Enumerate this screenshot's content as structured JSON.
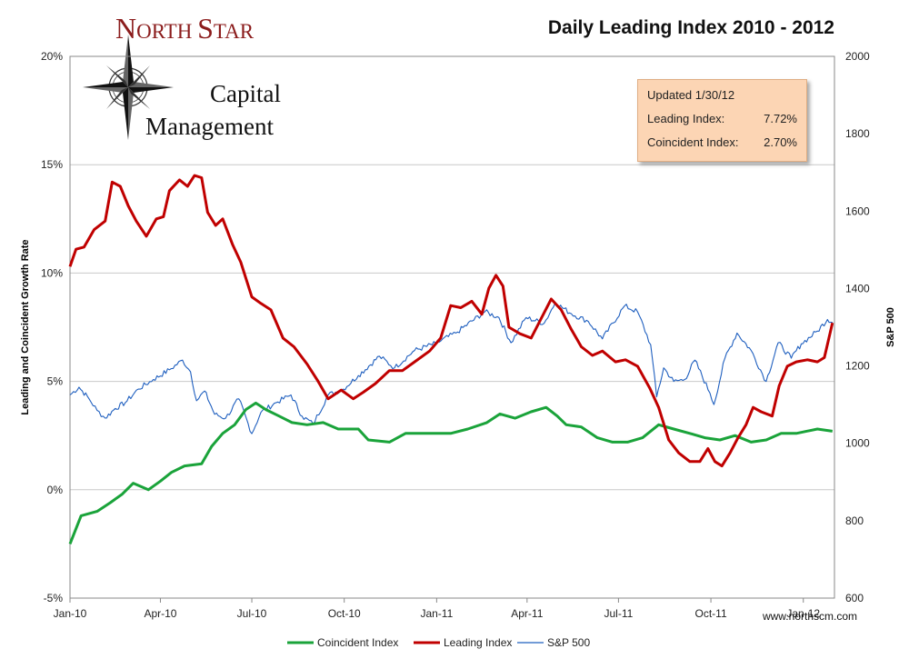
{
  "header": {
    "logo": {
      "north_first": "N",
      "north_rest": "ORTH",
      "star_first": "S",
      "star_rest": "TAR",
      "line2": "Capital",
      "line3": "Management"
    }
  },
  "info_box": {
    "updated": "Updated 1/30/12",
    "leading_label": "Leading Index:",
    "leading_value": "7.72%",
    "coincident_label": "Coincident Index:",
    "coincident_value": "2.70%"
  },
  "footer": {
    "website": "www.northscm.com"
  },
  "colors": {
    "coincident": "#1aa33a",
    "leading": "#c00000",
    "sp500": "#1f5fbf",
    "grid": "#c8c8c8"
  },
  "chart_data": {
    "type": "line",
    "title": "Daily Leading Index 2010 - 2012",
    "ylabel": "Leading and Coincident Growth Rate",
    "y2label": "S&P 500",
    "xlim": [
      "2010-01-01",
      "2012-02-01"
    ],
    "ylim": [
      -5,
      20
    ],
    "y2lim": [
      600,
      2000
    ],
    "x_ticks": [
      {
        "label": "Jan-10",
        "date": "2010-01-01"
      },
      {
        "label": "Apr-10",
        "date": "2010-04-01"
      },
      {
        "label": "Jul-10",
        "date": "2010-07-01"
      },
      {
        "label": "Oct-10",
        "date": "2010-10-01"
      },
      {
        "label": "Jan-11",
        "date": "2011-01-01"
      },
      {
        "label": "Apr-11",
        "date": "2011-04-01"
      },
      {
        "label": "Jul-11",
        "date": "2011-07-01"
      },
      {
        "label": "Oct-11",
        "date": "2011-10-01"
      },
      {
        "label": "Jan-12",
        "date": "2012-01-01"
      }
    ],
    "y_ticks": [
      {
        "label": "-5%",
        "value": -5
      },
      {
        "label": "0%",
        "value": 0
      },
      {
        "label": "5%",
        "value": 5
      },
      {
        "label": "10%",
        "value": 10
      },
      {
        "label": "15%",
        "value": 15
      },
      {
        "label": "20%",
        "value": 20
      }
    ],
    "y2_ticks": [
      {
        "label": "600",
        "value": 600
      },
      {
        "label": "800",
        "value": 800
      },
      {
        "label": "1000",
        "value": 1000
      },
      {
        "label": "1200",
        "value": 1200
      },
      {
        "label": "1400",
        "value": 1400
      },
      {
        "label": "1600",
        "value": 1600
      },
      {
        "label": "1800",
        "value": 1800
      },
      {
        "label": "2000",
        "value": 2000
      }
    ],
    "legend": {
      "position": "bottom"
    },
    "series": [
      {
        "name": "Coincident Index",
        "axis": "left",
        "color": "#1aa33a",
        "points": [
          [
            "2010-01-01",
            -2.5
          ],
          [
            "2010-01-12",
            -1.2
          ],
          [
            "2010-01-28",
            -1.0
          ],
          [
            "2010-02-10",
            -0.6
          ],
          [
            "2010-02-22",
            -0.2
          ],
          [
            "2010-03-05",
            0.3
          ],
          [
            "2010-03-20",
            0.0
          ],
          [
            "2010-04-01",
            0.4
          ],
          [
            "2010-04-12",
            0.8
          ],
          [
            "2010-04-25",
            1.1
          ],
          [
            "2010-05-12",
            1.2
          ],
          [
            "2010-05-22",
            2.0
          ],
          [
            "2010-06-02",
            2.6
          ],
          [
            "2010-06-14",
            3.0
          ],
          [
            "2010-06-25",
            3.7
          ],
          [
            "2010-07-05",
            4.0
          ],
          [
            "2010-07-15",
            3.7
          ],
          [
            "2010-07-28",
            3.4
          ],
          [
            "2010-08-10",
            3.1
          ],
          [
            "2010-08-25",
            3.0
          ],
          [
            "2010-09-10",
            3.1
          ],
          [
            "2010-09-25",
            2.8
          ],
          [
            "2010-10-15",
            2.8
          ],
          [
            "2010-10-25",
            2.3
          ],
          [
            "2010-11-15",
            2.2
          ],
          [
            "2010-12-01",
            2.6
          ],
          [
            "2011-01-15",
            2.6
          ],
          [
            "2011-02-01",
            2.8
          ],
          [
            "2011-02-20",
            3.1
          ],
          [
            "2011-03-05",
            3.5
          ],
          [
            "2011-03-20",
            3.3
          ],
          [
            "2011-04-05",
            3.6
          ],
          [
            "2011-04-20",
            3.8
          ],
          [
            "2011-05-01",
            3.4
          ],
          [
            "2011-05-10",
            3.0
          ],
          [
            "2011-05-25",
            2.9
          ],
          [
            "2011-06-10",
            2.4
          ],
          [
            "2011-06-25",
            2.2
          ],
          [
            "2011-07-10",
            2.2
          ],
          [
            "2011-07-25",
            2.4
          ],
          [
            "2011-08-10",
            3.0
          ],
          [
            "2011-08-25",
            2.8
          ],
          [
            "2011-09-10",
            2.6
          ],
          [
            "2011-09-25",
            2.4
          ],
          [
            "2011-10-10",
            2.3
          ],
          [
            "2011-10-25",
            2.5
          ],
          [
            "2011-11-10",
            2.2
          ],
          [
            "2011-11-25",
            2.3
          ],
          [
            "2011-12-10",
            2.6
          ],
          [
            "2011-12-25",
            2.6
          ],
          [
            "2012-01-15",
            2.8
          ],
          [
            "2012-01-30",
            2.7
          ]
        ]
      },
      {
        "name": "Leading Index",
        "axis": "left",
        "color": "#c00000",
        "points": [
          [
            "2010-01-01",
            10.3
          ],
          [
            "2010-01-07",
            11.1
          ],
          [
            "2010-01-15",
            11.2
          ],
          [
            "2010-01-25",
            12.0
          ],
          [
            "2010-02-05",
            12.4
          ],
          [
            "2010-02-12",
            14.2
          ],
          [
            "2010-02-20",
            14.0
          ],
          [
            "2010-02-28",
            13.1
          ],
          [
            "2010-03-08",
            12.4
          ],
          [
            "2010-03-18",
            11.7
          ],
          [
            "2010-03-28",
            12.5
          ],
          [
            "2010-04-04",
            12.6
          ],
          [
            "2010-04-10",
            13.8
          ],
          [
            "2010-04-20",
            14.3
          ],
          [
            "2010-04-28",
            14.0
          ],
          [
            "2010-05-05",
            14.5
          ],
          [
            "2010-05-12",
            14.4
          ],
          [
            "2010-05-18",
            12.8
          ],
          [
            "2010-05-26",
            12.2
          ],
          [
            "2010-06-02",
            12.5
          ],
          [
            "2010-06-12",
            11.3
          ],
          [
            "2010-06-20",
            10.5
          ],
          [
            "2010-07-01",
            8.9
          ],
          [
            "2010-07-10",
            8.6
          ],
          [
            "2010-07-20",
            8.3
          ],
          [
            "2010-08-01",
            7.0
          ],
          [
            "2010-08-12",
            6.6
          ],
          [
            "2010-08-25",
            5.8
          ],
          [
            "2010-09-05",
            5.0
          ],
          [
            "2010-09-15",
            4.2
          ],
          [
            "2010-09-28",
            4.6
          ],
          [
            "2010-10-10",
            4.2
          ],
          [
            "2010-10-20",
            4.5
          ],
          [
            "2010-11-01",
            4.9
          ],
          [
            "2010-11-15",
            5.5
          ],
          [
            "2010-11-28",
            5.5
          ],
          [
            "2010-12-10",
            5.9
          ],
          [
            "2010-12-25",
            6.4
          ],
          [
            "2011-01-05",
            7.0
          ],
          [
            "2011-01-15",
            8.5
          ],
          [
            "2011-01-25",
            8.4
          ],
          [
            "2011-02-05",
            8.7
          ],
          [
            "2011-02-15",
            8.1
          ],
          [
            "2011-02-22",
            9.3
          ],
          [
            "2011-03-01",
            9.9
          ],
          [
            "2011-03-08",
            9.4
          ],
          [
            "2011-03-14",
            7.5
          ],
          [
            "2011-03-25",
            7.2
          ],
          [
            "2011-04-05",
            7.0
          ],
          [
            "2011-04-15",
            7.9
          ],
          [
            "2011-04-25",
            8.8
          ],
          [
            "2011-05-05",
            8.3
          ],
          [
            "2011-05-15",
            7.4
          ],
          [
            "2011-05-25",
            6.6
          ],
          [
            "2011-06-05",
            6.2
          ],
          [
            "2011-06-15",
            6.4
          ],
          [
            "2011-06-28",
            5.9
          ],
          [
            "2011-07-08",
            6.0
          ],
          [
            "2011-07-20",
            5.7
          ],
          [
            "2011-08-01",
            4.7
          ],
          [
            "2011-08-10",
            3.8
          ],
          [
            "2011-08-20",
            2.3
          ],
          [
            "2011-08-30",
            1.7
          ],
          [
            "2011-09-10",
            1.3
          ],
          [
            "2011-09-20",
            1.3
          ],
          [
            "2011-09-28",
            1.9
          ],
          [
            "2011-10-05",
            1.3
          ],
          [
            "2011-10-12",
            1.1
          ],
          [
            "2011-10-20",
            1.7
          ],
          [
            "2011-10-28",
            2.4
          ],
          [
            "2011-11-05",
            3.0
          ],
          [
            "2011-11-12",
            3.8
          ],
          [
            "2011-11-20",
            3.6
          ],
          [
            "2011-12-01",
            3.4
          ],
          [
            "2011-12-08",
            4.8
          ],
          [
            "2011-12-16",
            5.7
          ],
          [
            "2011-12-25",
            5.9
          ],
          [
            "2012-01-05",
            6.0
          ],
          [
            "2012-01-15",
            5.9
          ],
          [
            "2012-01-22",
            6.1
          ],
          [
            "2012-01-30",
            7.7
          ]
        ]
      },
      {
        "name": "S&P 500",
        "axis": "right",
        "color": "#1f5fbf",
        "points": [
          [
            "2010-01-01",
            1125
          ],
          [
            "2010-01-10",
            1145
          ],
          [
            "2010-01-20",
            1115
          ],
          [
            "2010-01-28",
            1085
          ],
          [
            "2010-02-05",
            1065
          ],
          [
            "2010-02-15",
            1090
          ],
          [
            "2010-02-25",
            1105
          ],
          [
            "2010-03-10",
            1140
          ],
          [
            "2010-03-25",
            1165
          ],
          [
            "2010-04-10",
            1190
          ],
          [
            "2010-04-23",
            1215
          ],
          [
            "2010-05-01",
            1185
          ],
          [
            "2010-05-07",
            1110
          ],
          [
            "2010-05-15",
            1135
          ],
          [
            "2010-05-25",
            1075
          ],
          [
            "2010-06-05",
            1065
          ],
          [
            "2010-06-18",
            1115
          ],
          [
            "2010-07-01",
            1025
          ],
          [
            "2010-07-10",
            1080
          ],
          [
            "2010-07-25",
            1105
          ],
          [
            "2010-08-09",
            1125
          ],
          [
            "2010-08-20",
            1070
          ],
          [
            "2010-08-31",
            1050
          ],
          [
            "2010-09-15",
            1125
          ],
          [
            "2010-09-30",
            1140
          ],
          [
            "2010-10-15",
            1175
          ],
          [
            "2010-11-05",
            1225
          ],
          [
            "2010-11-20",
            1195
          ],
          [
            "2010-12-10",
            1240
          ],
          [
            "2010-12-31",
            1258
          ],
          [
            "2011-01-20",
            1285
          ],
          [
            "2011-02-18",
            1340
          ],
          [
            "2011-03-04",
            1325
          ],
          [
            "2011-03-16",
            1260
          ],
          [
            "2011-03-31",
            1325
          ],
          [
            "2011-04-18",
            1310
          ],
          [
            "2011-04-29",
            1363
          ],
          [
            "2011-05-15",
            1335
          ],
          [
            "2011-06-01",
            1315
          ],
          [
            "2011-06-15",
            1270
          ],
          [
            "2011-07-07",
            1355
          ],
          [
            "2011-07-20",
            1340
          ],
          [
            "2011-08-02",
            1255
          ],
          [
            "2011-08-08",
            1120
          ],
          [
            "2011-08-15",
            1195
          ],
          [
            "2011-08-25",
            1160
          ],
          [
            "2011-09-05",
            1165
          ],
          [
            "2011-09-15",
            1215
          ],
          [
            "2011-09-30",
            1130
          ],
          [
            "2011-10-04",
            1100
          ],
          [
            "2011-10-15",
            1220
          ],
          [
            "2011-10-27",
            1285
          ],
          [
            "2011-11-10",
            1240
          ],
          [
            "2011-11-25",
            1160
          ],
          [
            "2011-12-07",
            1260
          ],
          [
            "2011-12-20",
            1220
          ],
          [
            "2011-12-30",
            1257
          ],
          [
            "2012-01-15",
            1290
          ],
          [
            "2012-01-25",
            1320
          ],
          [
            "2012-01-30",
            1313
          ]
        ]
      }
    ]
  }
}
